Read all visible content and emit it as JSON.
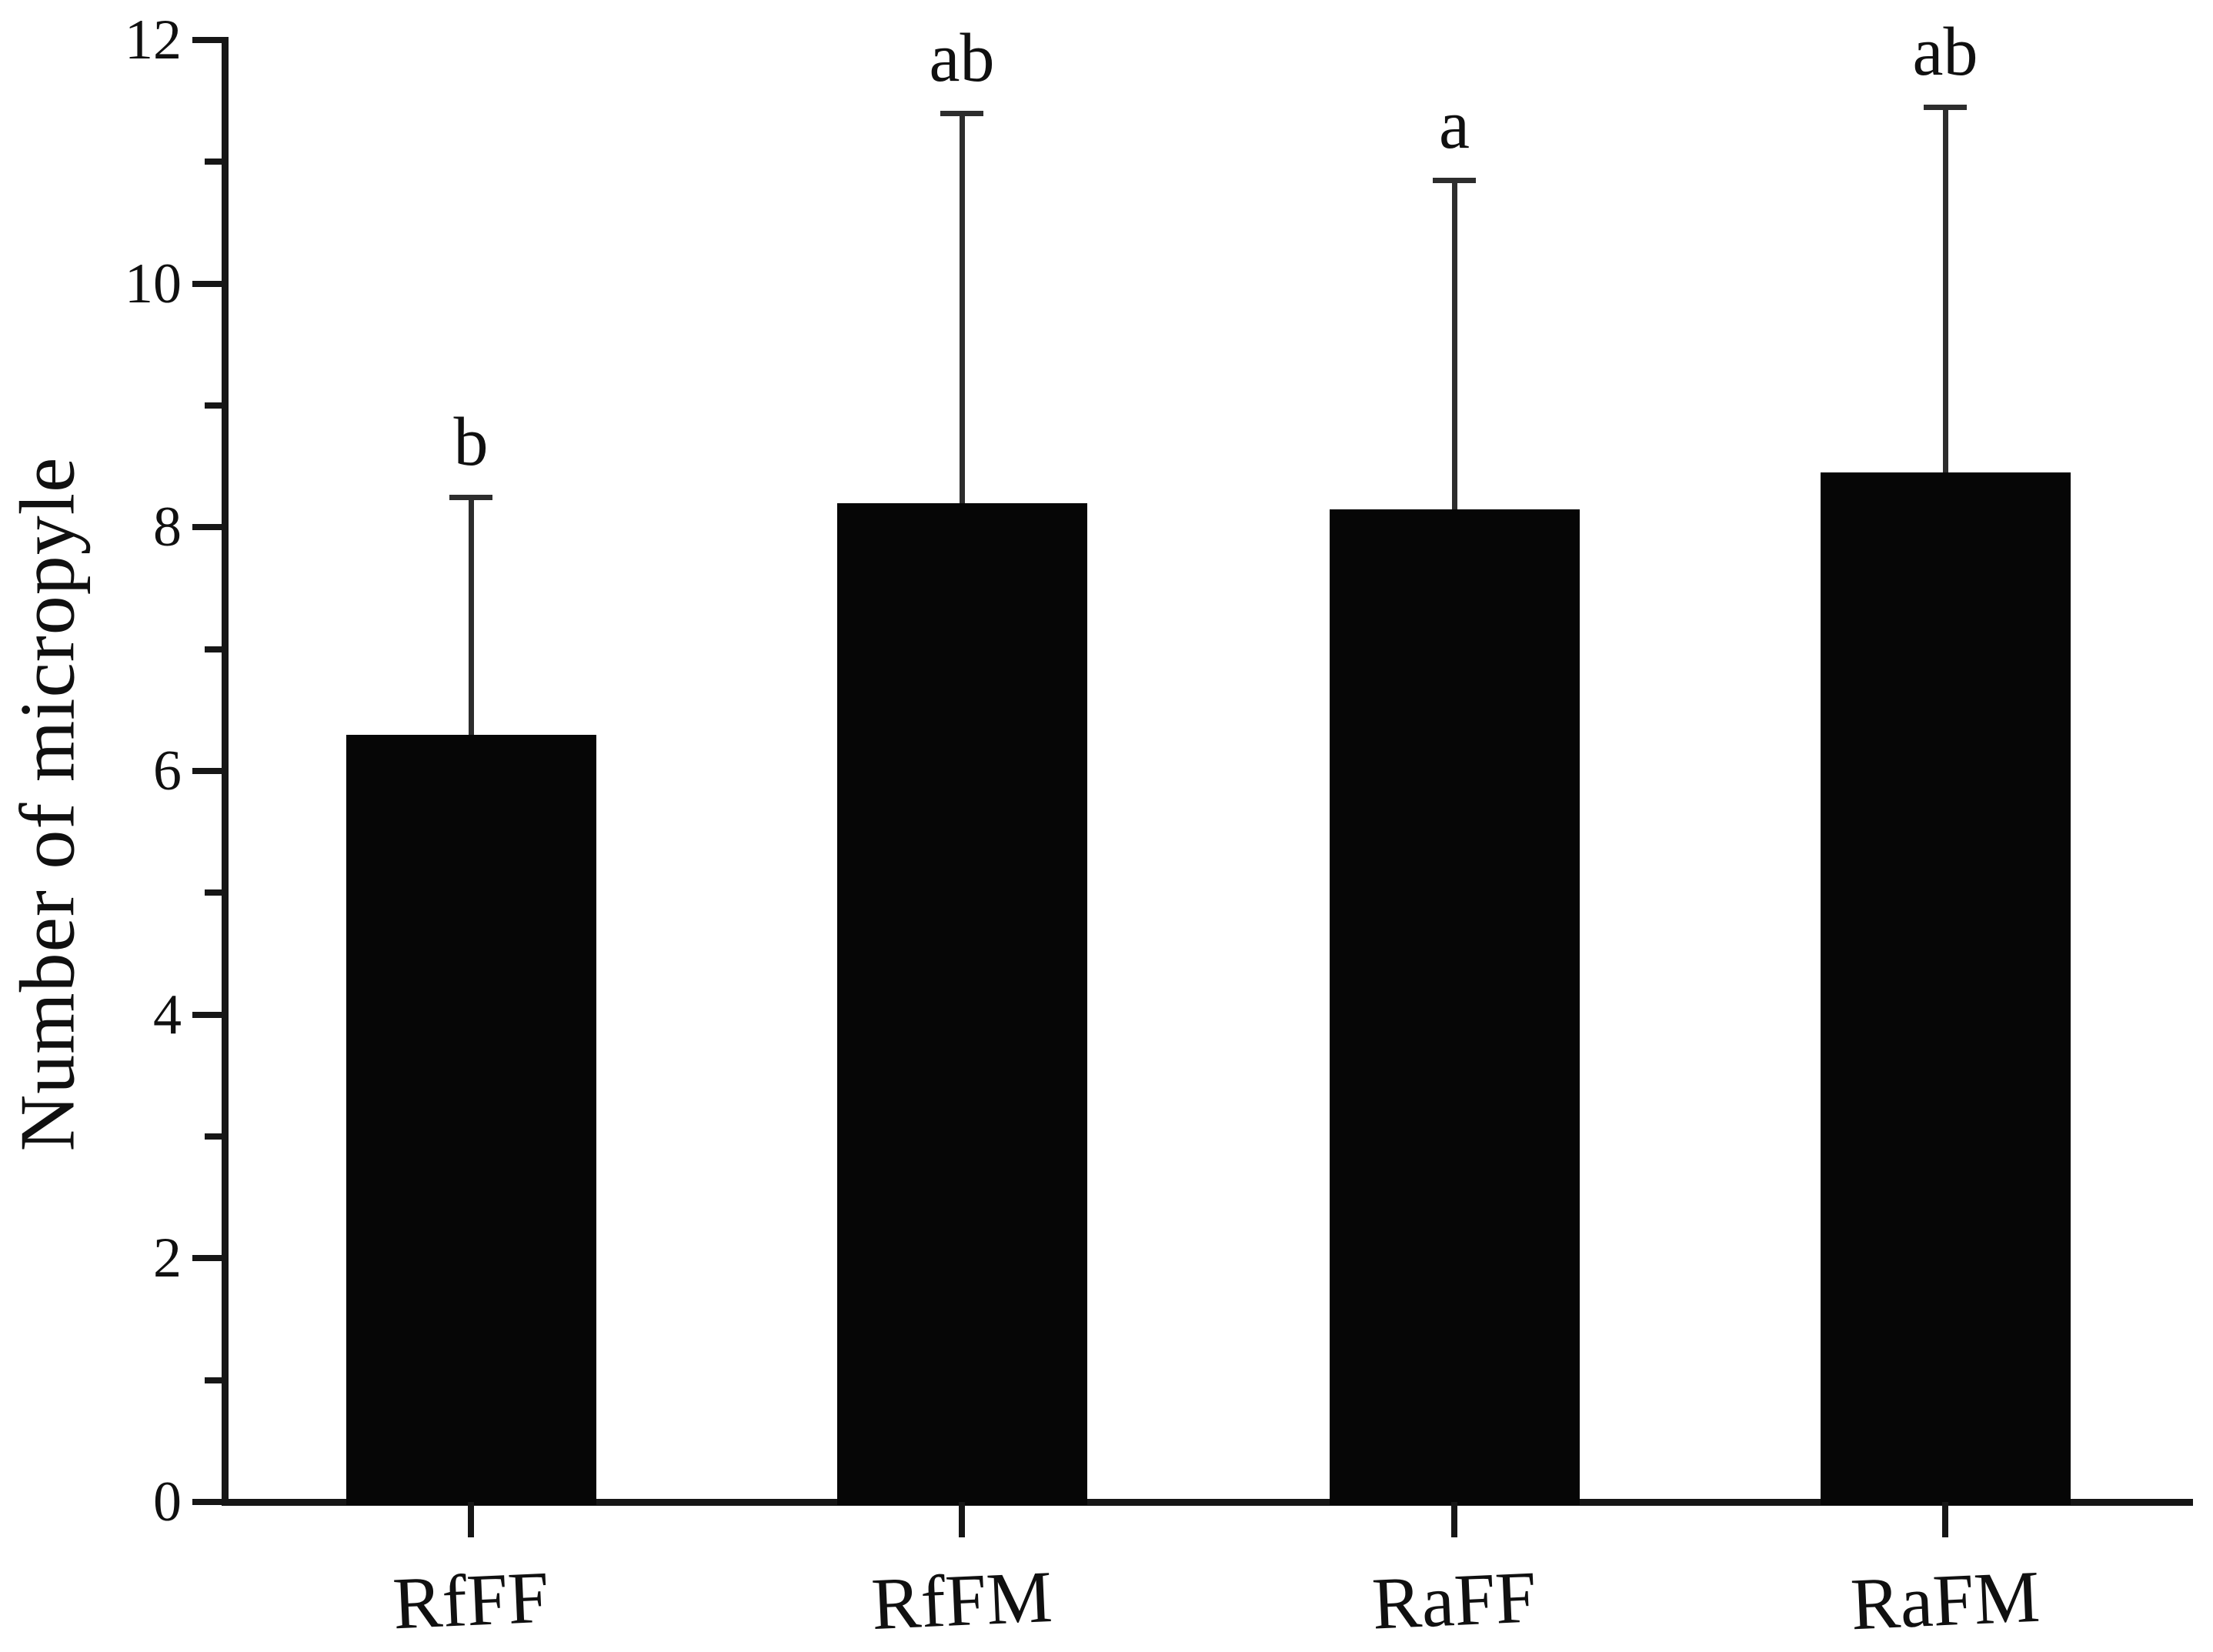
{
  "figure": {
    "background": "#ffffff",
    "bar_color": "#060606",
    "axis_color": "#161616",
    "error_bar_color": "#2d2d2d",
    "text_color": "#101010"
  },
  "chart_data": {
    "type": "bar",
    "title": "",
    "xlabel": "",
    "ylabel": "Number of micropyle",
    "categories": [
      "RfFF",
      "RfFM",
      "RaFF",
      "RaFM"
    ],
    "values": [
      6.3,
      8.2,
      8.15,
      8.45
    ],
    "error_plus": [
      1.95,
      3.2,
      2.7,
      3.0
    ],
    "error_tops": [
      8.25,
      11.4,
      10.85,
      11.45
    ],
    "significance_letters": [
      "b",
      "ab",
      "a",
      "ab"
    ],
    "ylim": [
      0,
      12
    ],
    "yticks_major": [
      0,
      2,
      4,
      6,
      8,
      10,
      12
    ],
    "yticks_minor": [
      1,
      3,
      5,
      7,
      9,
      11
    ],
    "grid": "off",
    "legend": "none",
    "bar_fill": "solid-black",
    "error_bars": "upper-only-with-cap"
  }
}
